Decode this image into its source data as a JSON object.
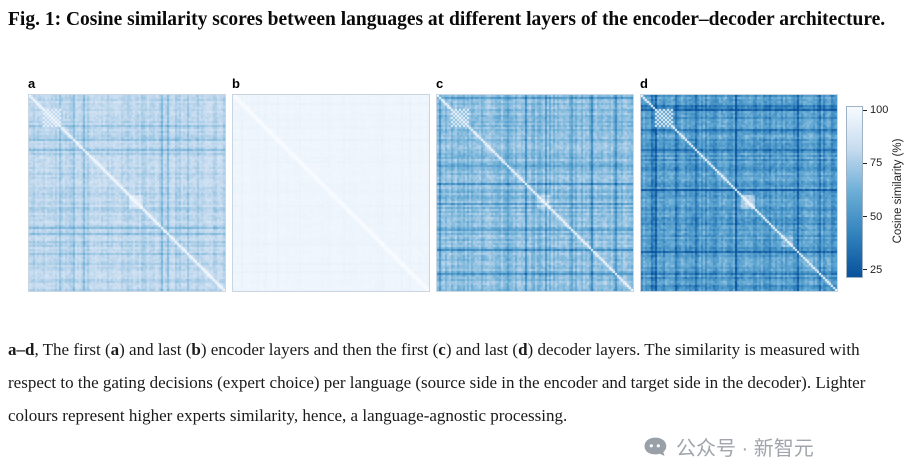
{
  "figure": {
    "title": "Fig. 1: Cosine similarity scores between languages at different layers of the encoder–decoder architecture.",
    "caption_segments": [
      {
        "text": "a–d",
        "bold": true
      },
      {
        "text": ", The first (",
        "bold": false
      },
      {
        "text": "a",
        "bold": true
      },
      {
        "text": ") and last (",
        "bold": false
      },
      {
        "text": "b",
        "bold": true
      },
      {
        "text": ") encoder layers and then the first (",
        "bold": false
      },
      {
        "text": "c",
        "bold": true
      },
      {
        "text": ") and last (",
        "bold": false
      },
      {
        "text": "d",
        "bold": true
      },
      {
        "text": ") decoder layers. The similarity is measured with respect to the gating decisions (expert choice) per language (source side in the encoder and target side in the decoder). Lighter colours represent higher experts similarity, hence, a language-agnostic processing.",
        "bold": false
      }
    ]
  },
  "chart_data": {
    "type": "heatmap",
    "title": "Cosine similarity scores between languages at different layers of the encoder–decoder architecture",
    "layout": "four language-by-language similarity matrices, shared colorbar on right, white diagonal of self-similarity",
    "colorbar": {
      "label": "Cosine similarity (%)",
      "ticks": [
        100,
        75,
        50,
        25
      ],
      "range": [
        25,
        100
      ],
      "stops": [
        "#f7fbff",
        "#c6dbef",
        "#6baed6",
        "#3182bd",
        "#08519c"
      ]
    },
    "panels": [
      {
        "label": "a",
        "description": "first encoder layer",
        "approx_mean_similarity": 82,
        "appearance": {
          "seed": 11,
          "base_similarity": 91,
          "band_spread": 9,
          "noise": 7,
          "checker_block": [
            7,
            15
          ],
          "light_blocks": [
            [
              50,
              56,
              8
            ]
          ]
        }
      },
      {
        "label": "b",
        "description": "last encoder layer",
        "approx_mean_similarity": 97,
        "appearance": {
          "seed": 22,
          "base_similarity": 98.3,
          "band_spread": 1.1,
          "noise": 1.4,
          "checker_block": null,
          "light_blocks": []
        }
      },
      {
        "label": "c",
        "description": "first decoder layer",
        "approx_mean_similarity": 72,
        "appearance": {
          "seed": 33,
          "base_similarity": 86,
          "band_spread": 13,
          "noise": 9,
          "checker_block": [
            7,
            15
          ],
          "light_blocks": [
            [
              50,
              56,
              14
            ]
          ]
        }
      },
      {
        "label": "d",
        "description": "last decoder layer",
        "approx_mean_similarity": 58,
        "appearance": {
          "seed": 44,
          "base_similarity": 79,
          "band_spread": 18,
          "noise": 12,
          "checker_block": [
            7,
            15
          ],
          "light_blocks": [
            [
              50,
              56,
              18
            ],
            [
              70,
              75,
              12
            ]
          ]
        }
      }
    ]
  },
  "watermark": {
    "text": "公众号 · 新智元"
  }
}
